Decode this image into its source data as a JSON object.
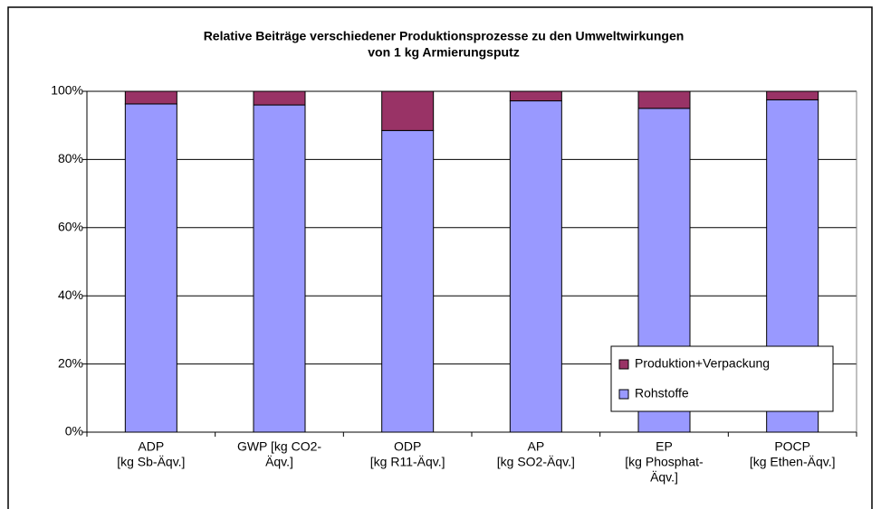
{
  "chart_data": {
    "type": "stacked_bar",
    "title": [
      "Relative Beiträge verschiedener Produktionsprozesse zu den Umweltwirkungen",
      "von 1 kg Armierungsputz"
    ],
    "categories": [
      [
        "ADP",
        "[kg Sb-Äqv.]"
      ],
      [
        "GWP [kg CO2-",
        "Äqv.]"
      ],
      [
        "ODP",
        "[kg R11-Äqv.]"
      ],
      [
        "AP",
        "[kg SO2-Äqv.]"
      ],
      [
        "EP",
        "[kg Phosphat-",
        "Äqv.]"
      ],
      [
        "POCP",
        "[kg Ethen-Äqv.]"
      ]
    ],
    "series": [
      {
        "name": "Rohstoffe",
        "color": "#9999ff",
        "values": [
          96.3,
          96,
          88.5,
          97.2,
          95,
          97.5
        ]
      },
      {
        "name": "Produktion+Verpackung",
        "color": "#993366",
        "values": [
          3.7,
          4,
          11.5,
          2.8,
          5,
          2.5
        ]
      }
    ],
    "ylim": [
      0,
      100
    ],
    "yticks": [
      {
        "value": 0,
        "label": "0%"
      },
      {
        "value": 20,
        "label": "20%"
      },
      {
        "value": 40,
        "label": "40%"
      },
      {
        "value": 60,
        "label": "60%"
      },
      {
        "value": 80,
        "label": "80%"
      },
      {
        "value": 100,
        "label": "100%"
      }
    ],
    "grid": true,
    "legend": "lower right"
  }
}
